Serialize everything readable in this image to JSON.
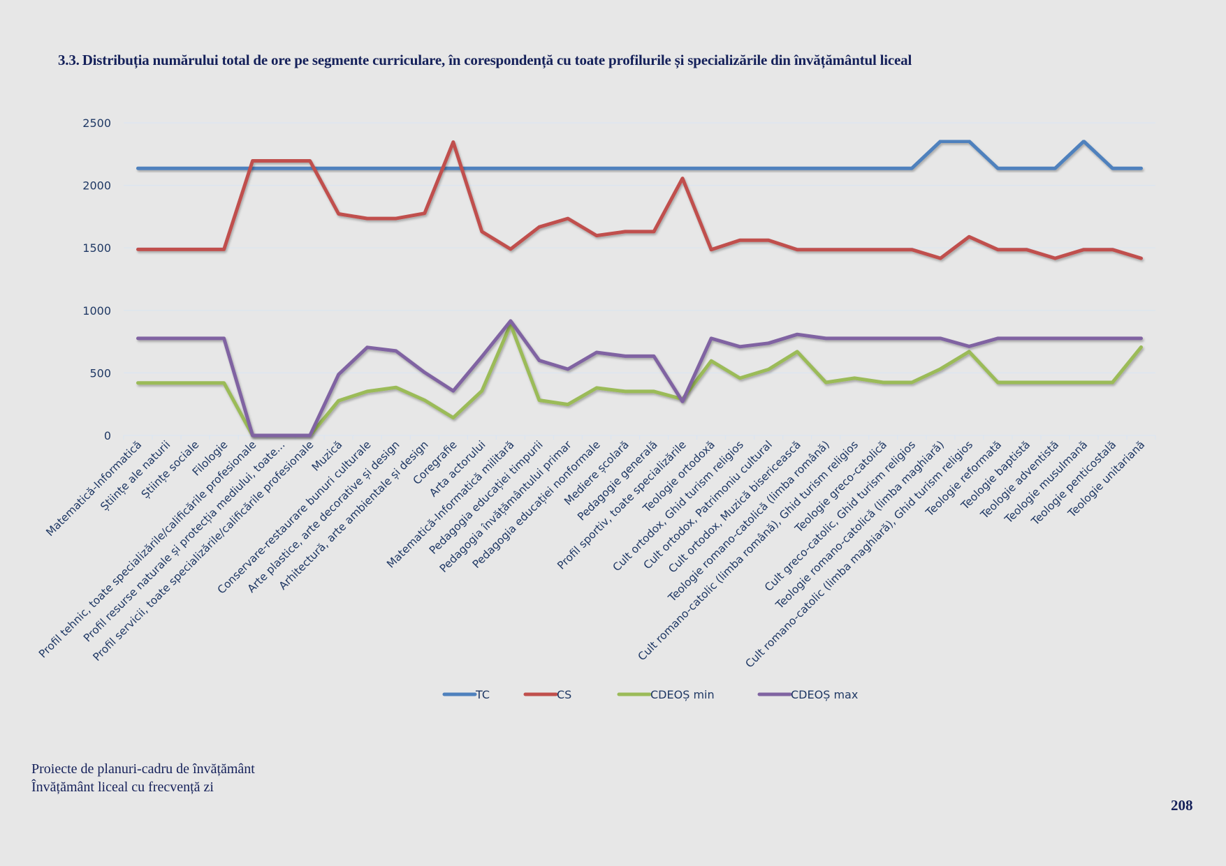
{
  "heading": {
    "number": "3.3.",
    "text": "Distribuția numărului total de ore pe segmente curriculare, în corespondență cu toate profilurile și specializările din învățământul liceal"
  },
  "footer": {
    "line1": "Proiecte de planuri-cadru de învățământ",
    "line2": "Învățământ liceal cu frecvență zi",
    "page_number": "208"
  },
  "chart_data": {
    "type": "line",
    "title": "",
    "xlabel": "",
    "ylabel": "",
    "ylim": [
      0,
      2500
    ],
    "yticks": [
      0,
      500,
      1000,
      1500,
      2000,
      2500
    ],
    "grid": true,
    "legend_position": "bottom",
    "categories": [
      "Matematică-Informatică",
      "Științe ale naturii",
      "Științe sociale",
      "Filologie",
      "Profil tehnic, toate specializările/calificările profesionale",
      "Profil resurse naturale și protecția mediului, toate...",
      "Profil servicii, toate specializările/calificările profesionale",
      "Muzică",
      "Conservare-restaurare bunuri culturale",
      "Arte plastice, arte decorative și design",
      "Arhitectură, arte ambientale și design",
      "Coregrafie",
      "Arta actorului",
      "Matematică-Informatică militară",
      "Pedagogia educației timpurii",
      "Pedagogia învățământului primar",
      "Pedagogia educației nonformale",
      "Mediere școlară",
      "Pedagogie generală",
      "Profil sportiv, toate specializările",
      "Teologie ortodoxă",
      "Cult ortodox, Ghid turism religios",
      "Cult ortodox, Patrimoniu cultural",
      "Cult ortodox, Muzică bisericească",
      "Teologie romano-catolică (limba română)",
      "Cult romano-catolic (limba română), Ghid turism religios",
      "Teologie greco-catolică",
      "Cult greco-catolic, Ghid turism religios",
      "Teologie romano-catolică (limba maghiară)",
      "Cult romano-catolic (limba maghiară), Ghid turism religios",
      "Teologie reformată",
      "Teologie baptistă",
      "Teologie adventistă",
      "Teologie musulmană",
      "Teologie penticostală",
      "Teologie unitariană"
    ],
    "series": [
      {
        "name": "TC",
        "color": "#4f81bd",
        "values": [
          2136,
          2136,
          2136,
          2136,
          2136,
          2136,
          2136,
          2136,
          2136,
          2136,
          2136,
          2136,
          2136,
          2136,
          2136,
          2136,
          2136,
          2136,
          2136,
          2136,
          2136,
          2136,
          2136,
          2136,
          2136,
          2136,
          2136,
          2136,
          2352,
          2352,
          2136,
          2136,
          2136,
          2352,
          2136,
          2136
        ]
      },
      {
        "name": "CS",
        "color": "#c0504d",
        "values": [
          1488,
          1488,
          1488,
          1488,
          2196,
          2196,
          2196,
          1772,
          1735,
          1735,
          1776,
          2346,
          1630,
          1490,
          1667,
          1735,
          1598,
          1630,
          1630,
          2056,
          1486,
          1561,
          1561,
          1486,
          1486,
          1486,
          1486,
          1486,
          1417,
          1589,
          1486,
          1486,
          1417,
          1486,
          1486,
          1417
        ]
      },
      {
        "name": "CDEOȘ min",
        "color": "#9bbb59",
        "values": [
          420,
          420,
          420,
          420,
          0,
          0,
          0,
          278,
          352,
          384,
          282,
          142,
          356,
          888,
          282,
          248,
          380,
          352,
          352,
          290,
          596,
          458,
          528,
          670,
          424,
          458,
          424,
          424,
          532,
          670,
          424,
          424,
          424,
          424,
          424,
          706
        ]
      },
      {
        "name": "CDEOȘ max",
        "color": "#8064a2",
        "values": [
          776,
          776,
          776,
          776,
          0,
          0,
          0,
          488,
          704,
          676,
          504,
          356,
          630,
          916,
          600,
          530,
          664,
          634,
          634,
          272,
          776,
          710,
          738,
          808,
          776,
          776,
          776,
          776,
          776,
          712,
          776,
          776,
          776,
          776,
          776,
          776
        ]
      }
    ]
  }
}
